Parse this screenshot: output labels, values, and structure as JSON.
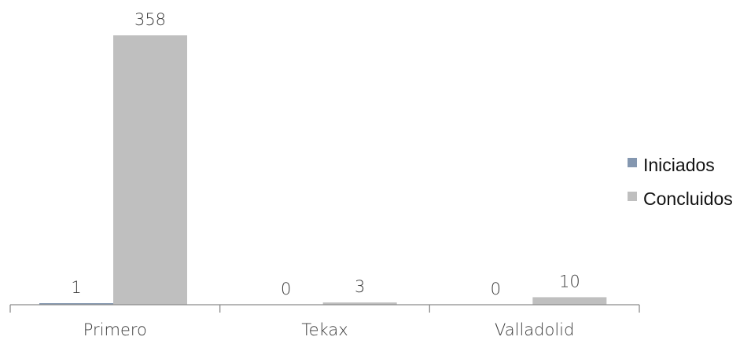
{
  "chart_data": {
    "type": "bar",
    "categories": [
      "Primero",
      "Tekax",
      "Valladolid"
    ],
    "series": [
      {
        "name": "Iniciados",
        "values": [
          1,
          0,
          0
        ],
        "color": "#8497b0"
      },
      {
        "name": "Concluidos",
        "values": [
          358,
          3,
          10
        ],
        "color": "#bfbfbf"
      }
    ],
    "ylim": [
      0,
      358
    ],
    "grid": false,
    "legend_position": "right"
  }
}
